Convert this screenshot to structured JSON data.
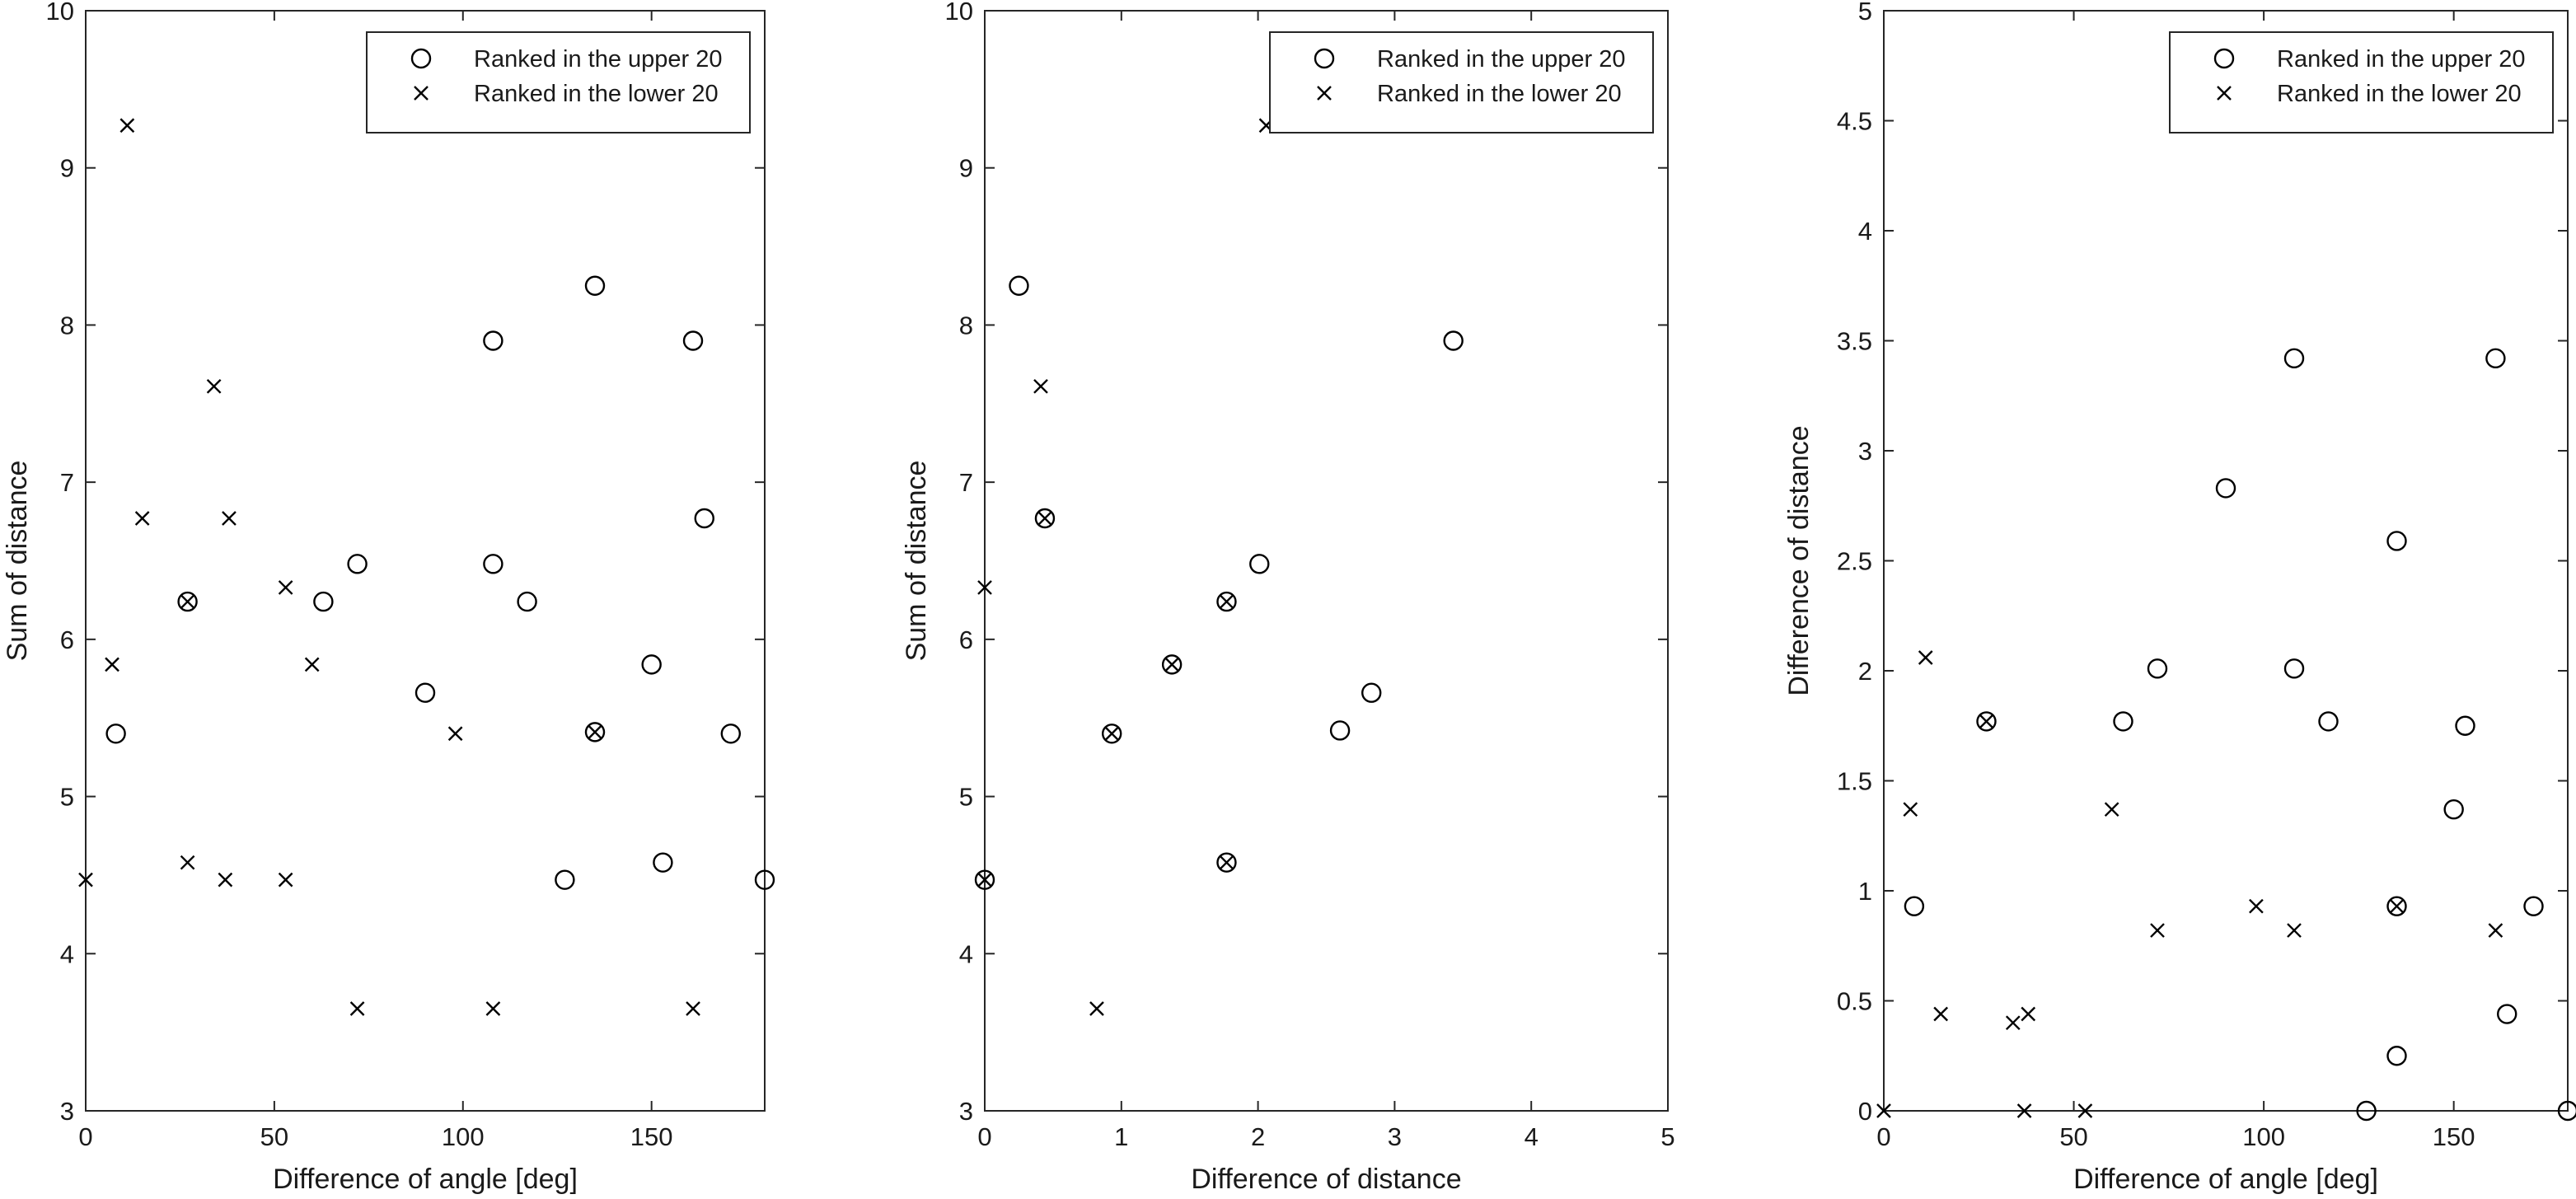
{
  "chart_data": [
    {
      "type": "scatter",
      "xlabel": "Difference of angle [deg]",
      "ylabel": "Sum of distance",
      "xlim": [
        0,
        180
      ],
      "ylim": [
        3,
        10
      ],
      "xticks": [
        0,
        50,
        100,
        150
      ],
      "yticks": [
        3,
        4,
        5,
        6,
        7,
        8,
        9,
        10
      ],
      "legend": "top-right",
      "series": [
        {
          "name": "Ranked in the upper 20",
          "marker": "circle",
          "points": [
            [
              8,
              5.4
            ],
            [
              27,
              6.24
            ],
            [
              63,
              6.24
            ],
            [
              72,
              6.48
            ],
            [
              90,
              5.66
            ],
            [
              108,
              7.9
            ],
            [
              108,
              6.48
            ],
            [
              117,
              6.24
            ],
            [
              127,
              4.47
            ],
            [
              135,
              8.25
            ],
            [
              135,
              5.41
            ],
            [
              150,
              5.84
            ],
            [
              153,
              4.58
            ],
            [
              161,
              7.9
            ],
            [
              164,
              6.77
            ],
            [
              171,
              5.4
            ],
            [
              180,
              4.47
            ]
          ]
        },
        {
          "name": "Ranked in the lower 20",
          "marker": "cross",
          "points": [
            [
              0,
              4.47
            ],
            [
              7,
              5.84
            ],
            [
              11,
              9.27
            ],
            [
              15,
              6.77
            ],
            [
              27,
              6.24
            ],
            [
              27,
              4.58
            ],
            [
              34,
              7.61
            ],
            [
              37,
              4.47
            ],
            [
              38,
              6.77
            ],
            [
              53,
              6.33
            ],
            [
              53,
              4.47
            ],
            [
              60,
              5.84
            ],
            [
              72,
              3.65
            ],
            [
              98,
              5.4
            ],
            [
              108,
              3.65
            ],
            [
              135,
              5.41
            ],
            [
              161,
              3.65
            ]
          ]
        }
      ]
    },
    {
      "type": "scatter",
      "xlabel": "Difference of distance",
      "ylabel": "Sum of distance",
      "xlim": [
        0,
        5
      ],
      "ylim": [
        3,
        10
      ],
      "xticks": [
        0,
        1,
        2,
        3,
        4,
        5
      ],
      "yticks": [
        3,
        4,
        5,
        6,
        7,
        8,
        9,
        10
      ],
      "legend": "top-right",
      "series": [
        {
          "name": "Ranked in the upper 20",
          "marker": "circle",
          "points": [
            [
              0,
              4.47
            ],
            [
              0.25,
              8.25
            ],
            [
              0.44,
              6.77
            ],
            [
              0.93,
              5.4
            ],
            [
              1.37,
              5.84
            ],
            [
              1.77,
              6.24
            ],
            [
              1.77,
              4.58
            ],
            [
              2.01,
              6.48
            ],
            [
              2.6,
              5.42
            ],
            [
              2.83,
              5.66
            ],
            [
              3.43,
              7.9
            ]
          ]
        },
        {
          "name": "Ranked in the lower 20",
          "marker": "cross",
          "points": [
            [
              0,
              6.33
            ],
            [
              0,
              4.47
            ],
            [
              0.41,
              7.61
            ],
            [
              0.44,
              6.77
            ],
            [
              0.82,
              3.65
            ],
            [
              0.93,
              5.4
            ],
            [
              1.37,
              5.84
            ],
            [
              1.77,
              6.24
            ],
            [
              1.77,
              4.58
            ],
            [
              2.06,
              9.27
            ]
          ]
        }
      ]
    },
    {
      "type": "scatter",
      "xlabel": "Difference of angle [deg]",
      "ylabel": "Difference of distance",
      "xlim": [
        0,
        180
      ],
      "ylim": [
        0,
        5
      ],
      "xticks": [
        0,
        50,
        100,
        150
      ],
      "yticks": [
        0,
        0.5,
        1,
        1.5,
        2,
        2.5,
        3,
        3.5,
        4,
        4.5,
        5
      ],
      "legend": "top-right",
      "series": [
        {
          "name": "Ranked in the upper 20",
          "marker": "circle",
          "points": [
            [
              8,
              0.93
            ],
            [
              27,
              1.77
            ],
            [
              63,
              1.77
            ],
            [
              72,
              2.01
            ],
            [
              90,
              2.83
            ],
            [
              108,
              3.42
            ],
            [
              108,
              2.01
            ],
            [
              117,
              1.77
            ],
            [
              127,
              0
            ],
            [
              135,
              2.59
            ],
            [
              135,
              0.93
            ],
            [
              135,
              0.25
            ],
            [
              150,
              1.37
            ],
            [
              153,
              1.75
            ],
            [
              161,
              3.42
            ],
            [
              164,
              0.44
            ],
            [
              171,
              0.93
            ],
            [
              180,
              0
            ]
          ]
        },
        {
          "name": "Ranked in the lower 20",
          "marker": "cross",
          "points": [
            [
              0,
              0
            ],
            [
              7,
              1.37
            ],
            [
              11,
              2.06
            ],
            [
              15,
              0.44
            ],
            [
              27,
              1.77
            ],
            [
              34,
              0.4
            ],
            [
              37,
              0
            ],
            [
              38,
              0.44
            ],
            [
              53,
              0
            ],
            [
              60,
              1.37
            ],
            [
              72,
              0.82
            ],
            [
              98,
              0.93
            ],
            [
              108,
              0.82
            ],
            [
              135,
              0.93
            ],
            [
              161,
              0.82
            ]
          ]
        }
      ]
    }
  ]
}
